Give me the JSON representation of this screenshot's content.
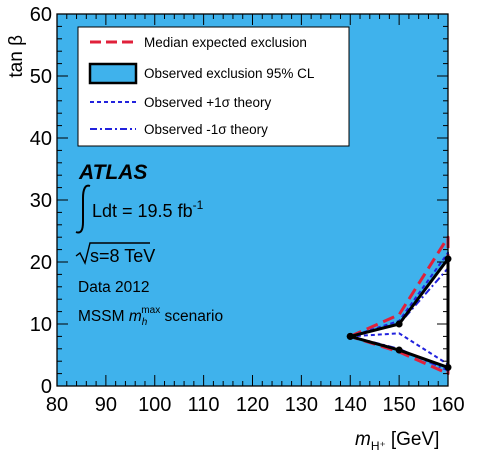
{
  "chart_data": {
    "type": "line",
    "xlabel_main": "m",
    "xlabel_sub": "H⁺",
    "xlabel_unit": "[GeV]",
    "ylabel": "tan β",
    "xlim": [
      80,
      160
    ],
    "ylim": [
      0,
      60
    ],
    "x_ticks": [
      "80",
      "90",
      "100",
      "110",
      "120",
      "130",
      "140",
      "150",
      "160"
    ],
    "y_ticks": [
      "0",
      "10",
      "20",
      "30",
      "40",
      "50",
      "60"
    ],
    "grid": false,
    "legend_position": "top-left",
    "colors": {
      "excluded_region": "#3fb2ec",
      "median": "#e0203a",
      "observed": "#000000",
      "plus_one_sigma": "#2222dd",
      "minus_one_sigma": "#2222dd"
    },
    "legend": [
      {
        "key": "median",
        "label": "Median expected exclusion"
      },
      {
        "key": "observed",
        "label": "Observed exclusion 95% CL"
      },
      {
        "key": "plus_one_sigma",
        "label": "Observed +1σ theory"
      },
      {
        "key": "minus_one_sigma",
        "label": "Observed -1σ theory"
      }
    ],
    "series": [
      {
        "key": "observed",
        "x": [
          140,
          150,
          160,
          160,
          150,
          140
        ],
        "y": [
          8.0,
          10.0,
          20.5,
          3.0,
          5.8,
          8.0
        ]
      },
      {
        "key": "median",
        "x": [
          140,
          150,
          160,
          160,
          150,
          140
        ],
        "y": [
          8.0,
          11.5,
          24.0,
          2.0,
          5.5,
          8.0
        ]
      },
      {
        "key": "plus_one_sigma",
        "x": [
          140,
          150,
          160,
          160,
          150,
          140
        ],
        "y": [
          8.0,
          10.5,
          21.5,
          3.5,
          8.5,
          8.0
        ]
      },
      {
        "key": "minus_one_sigma",
        "x": [
          140,
          150,
          160,
          160,
          150,
          140
        ],
        "y": [
          8.0,
          10.0,
          19.0,
          2.5,
          6.0,
          8.0
        ]
      }
    ],
    "annotations": {
      "experiment": "ATLAS",
      "lumi_prefix": "Ldt = 19.5 fb",
      "lumi_exp": "-1",
      "energy": "s=8 TeV",
      "data": "Data 2012",
      "scenario_prefix": "MSSM ",
      "scenario_sym": "m",
      "scenario_sub": "h",
      "scenario_sup": "max",
      "scenario_suffix": " scenario"
    }
  }
}
